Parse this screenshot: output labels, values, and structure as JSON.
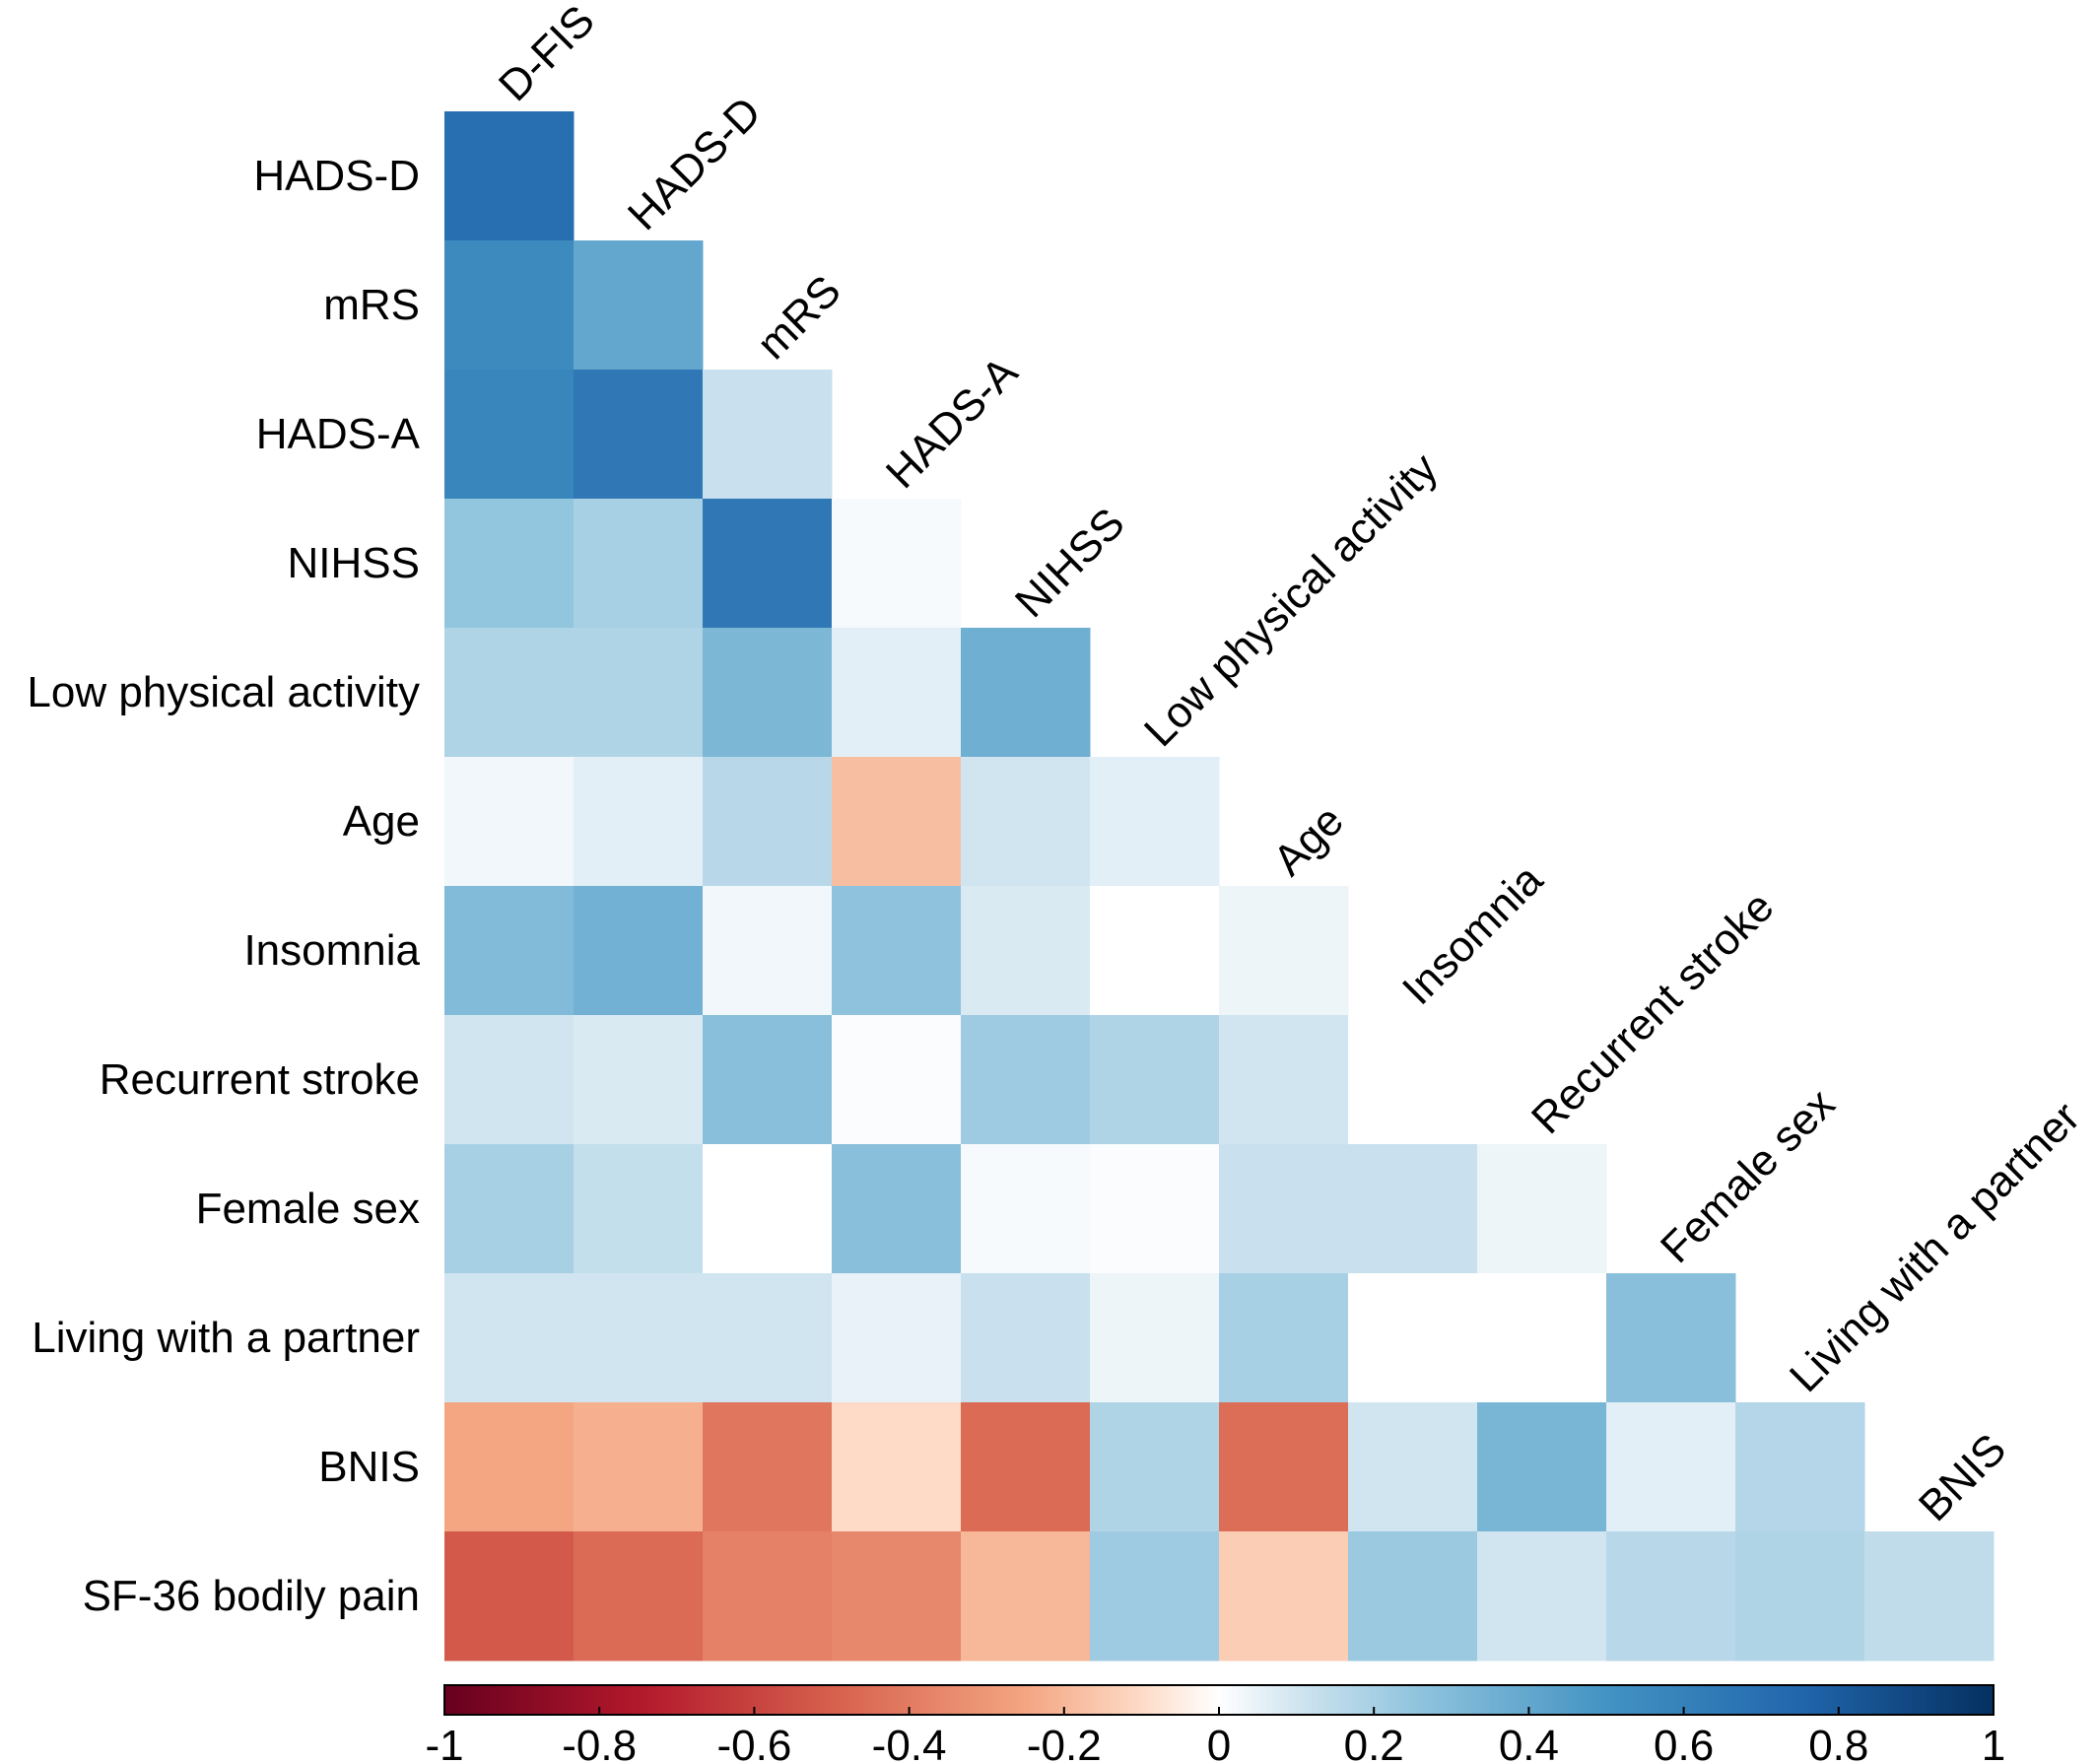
{
  "chart_data": {
    "type": "heatmap",
    "layout": "lower-triangular correlation matrix",
    "columns": [
      "D-FIS",
      "HADS-D",
      "mRS",
      "HADS-A",
      "NIHSS",
      "Low physical activity",
      "Age",
      "Insomnia",
      "Recurrent stroke",
      "Female sex",
      "Living with a partner",
      "BNIS"
    ],
    "rows": [
      "HADS-D",
      "mRS",
      "HADS-A",
      "NIHSS",
      "Low physical activity",
      "Age",
      "Insomnia",
      "Recurrent stroke",
      "Female sex",
      "Living with a partner",
      "BNIS",
      "SF-36 bodily pain"
    ],
    "values": [
      [
        0.7
      ],
      [
        0.55,
        0.4
      ],
      [
        0.57,
        0.65,
        0.12
      ],
      [
        0.25,
        0.2,
        0.65,
        0.02
      ],
      [
        0.18,
        0.18,
        0.32,
        0.06,
        0.36
      ],
      [
        0.03,
        0.06,
        0.16,
        -0.18,
        0.1,
        0.06
      ],
      [
        0.3,
        0.35,
        0.03,
        0.26,
        0.08,
        0.0,
        0.04
      ],
      [
        0.1,
        0.08,
        0.28,
        0.01,
        0.22,
        0.18,
        0.1,
        0.0
      ],
      [
        0.2,
        0.13,
        0.0,
        0.28,
        0.02,
        0.01,
        0.12,
        0.12,
        0.04
      ],
      [
        0.1,
        0.1,
        0.1,
        0.05,
        0.12,
        0.04,
        0.2,
        0.0,
        0.0,
        0.28
      ],
      [
        -0.25,
        -0.22,
        -0.42,
        -0.1,
        -0.46,
        0.18,
        -0.45,
        0.1,
        0.33,
        0.06,
        0.17
      ],
      [
        -0.52,
        -0.46,
        -0.38,
        -0.36,
        -0.2,
        0.22,
        -0.14,
        0.23,
        0.1,
        0.16,
        0.18,
        0.14
      ]
    ],
    "colorbar": {
      "range": [
        -1,
        1
      ],
      "ticks": [
        "-1",
        "-0.8",
        "-0.6",
        "-0.4",
        "-0.2",
        "0",
        "0.2",
        "0.4",
        "0.6",
        "0.8",
        "1"
      ],
      "colors": {
        "-1": "#67001f",
        "-0.75": "#b2182b",
        "-0.5": "#d6604d",
        "-0.25": "#f4a582",
        "-0.1": "#fddbc7",
        "0": "#ffffff",
        "0.1": "#d1e5f0",
        "0.25": "#92c5de",
        "0.5": "#4393c3",
        "0.75": "#2166ac",
        "1": "#053061"
      }
    }
  }
}
